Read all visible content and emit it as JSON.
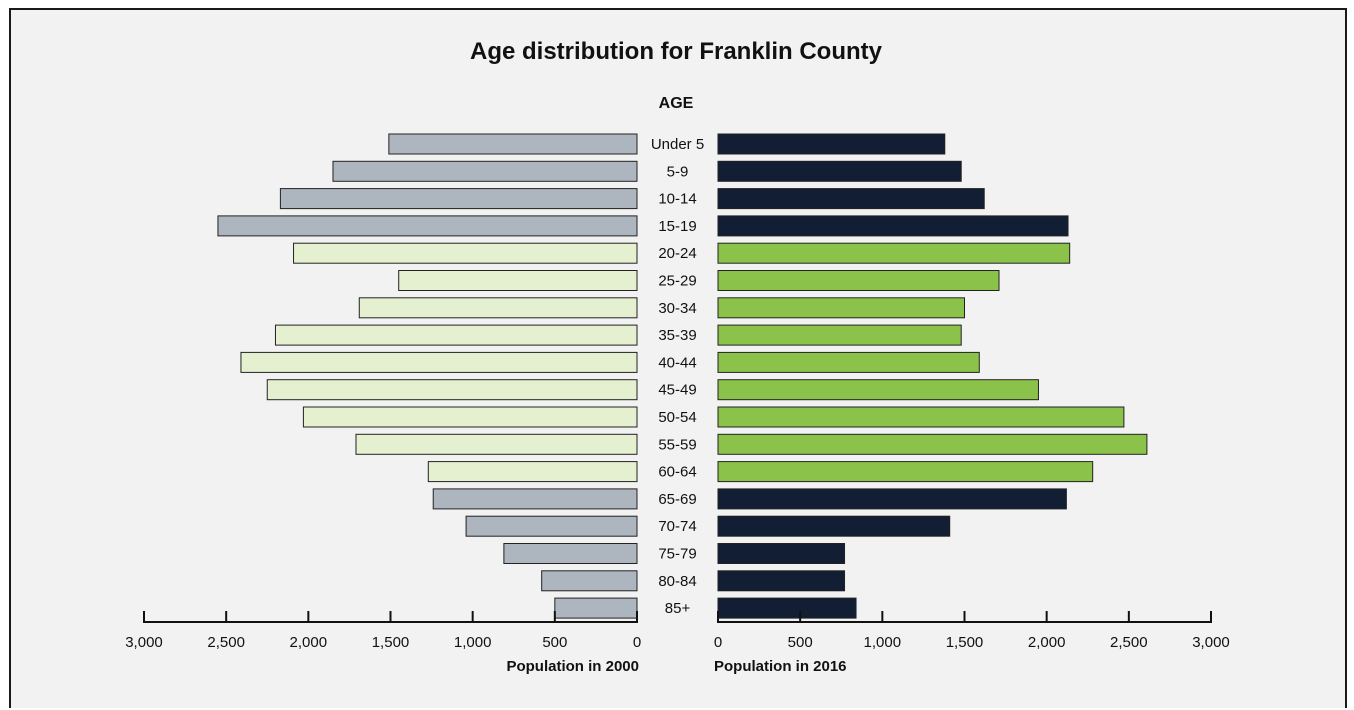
{
  "colors": {
    "background": "#f2f2f2",
    "left_default": "#adb5bf",
    "left_highlight": "#e4f0d0",
    "right_default": "#111e33",
    "right_highlight": "#8bc34a",
    "outline": "#222222"
  },
  "chart_data": {
    "type": "bar",
    "orientation": "horizontal-population-pyramid",
    "title": "Age distribution for Franklin County",
    "category_label": "AGE",
    "categories": [
      "Under 5",
      "5-9",
      "10-14",
      "15-19",
      "20-24",
      "25-29",
      "30-34",
      "35-39",
      "40-44",
      "45-49",
      "50-54",
      "55-59",
      "60-64",
      "65-69",
      "70-74",
      "75-79",
      "80-84",
      "85+"
    ],
    "highlight_categories": [
      "20-24",
      "25-29",
      "30-34",
      "35-39",
      "40-44",
      "45-49",
      "50-54",
      "55-59",
      "60-64"
    ],
    "series": [
      {
        "side": "left",
        "values": [
          1510,
          1850,
          2170,
          2550,
          2090,
          1450,
          1690,
          2200,
          2410,
          2250,
          2030,
          1710,
          1270,
          1240,
          1040,
          810,
          580,
          500
        ]
      },
      {
        "side": "right",
        "values": [
          1380,
          1480,
          1620,
          2130,
          2140,
          1710,
          1500,
          1480,
          1590,
          1950,
          2470,
          2610,
          2280,
          2120,
          1410,
          770,
          770,
          840
        ]
      }
    ],
    "left_axis": {
      "label": "Population in 2000",
      "range": [
        0,
        3000
      ],
      "ticks": [
        "3,000",
        "2,500",
        "2,000",
        "1,500",
        "1,000",
        "500",
        "0"
      ],
      "tick_values": [
        3000,
        2500,
        2000,
        1500,
        1000,
        500,
        0
      ]
    },
    "right_axis": {
      "label": "Population in 2016",
      "range": [
        0,
        3000
      ],
      "ticks": [
        "0",
        "500",
        "1,000",
        "1,500",
        "2,000",
        "2,500",
        "3,000"
      ],
      "tick_values": [
        0,
        500,
        1000,
        1500,
        2000,
        2500,
        3000
      ]
    },
    "grid": false,
    "legend": "none"
  }
}
